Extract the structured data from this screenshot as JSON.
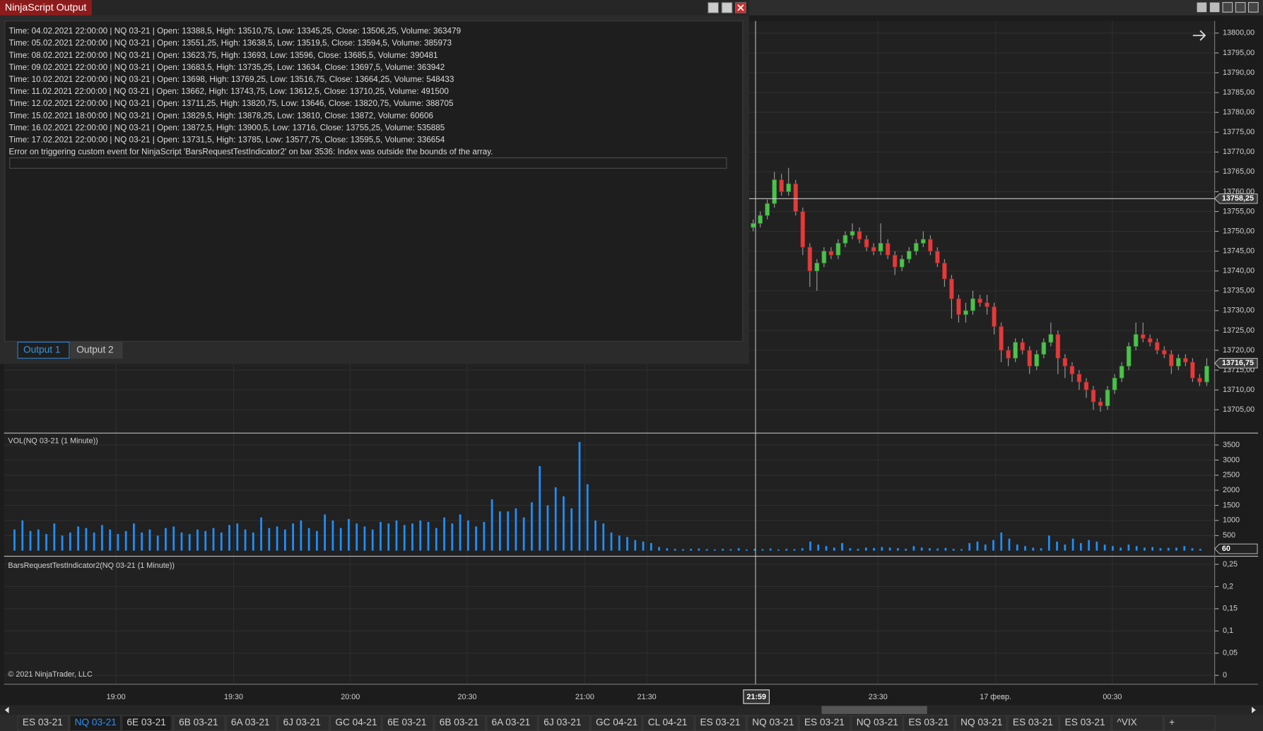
{
  "output_window": {
    "title": "NinjaScript Output",
    "lines": [
      "Time: 04.02.2021 22:00:00 | NQ 03-21 | Open: 13388,5, High: 13510,75, Low: 13345,25, Close: 13506,25, Volume: 363479",
      "Time: 05.02.2021 22:00:00 | NQ 03-21 | Open: 13551,25, High: 13638,5, Low: 13519,5, Close: 13594,5, Volume: 385973",
      "Time: 08.02.2021 22:00:00 | NQ 03-21 | Open: 13623,75, High: 13693, Low: 13596, Close: 13685,5, Volume: 390481",
      "Time: 09.02.2021 22:00:00 | NQ 03-21 | Open: 13683,5, High: 13735,25, Low: 13634, Close: 13697,5, Volume: 363942",
      "Time: 10.02.2021 22:00:00 | NQ 03-21 | Open: 13698, High: 13769,25, Low: 13516,75, Close: 13664,25, Volume: 548433",
      "Time: 11.02.2021 22:00:00 | NQ 03-21 | Open: 13662, High: 13743,75, Low: 13612,5, Close: 13710,25, Volume: 491500",
      "Time: 12.02.2021 22:00:00 | NQ 03-21 | Open: 13711,25, High: 13820,75, Low: 13646, Close: 13820,75, Volume: 388705",
      "Time: 15.02.2021 18:00:00 | NQ 03-21 | Open: 13829,5, High: 13878,25, Low: 13810, Close: 13872, Volume: 60606",
      "Time: 16.02.2021 22:00:00 | NQ 03-21 | Open: 13872,5, High: 13900,5, Low: 13716, Close: 13755,25, Volume: 535885",
      "Time: 17.02.2021 22:00:00 | NQ 03-21 | Open: 13731,5, High: 13785, Low: 13577,75, Close: 13595,5, Volume: 336654",
      "Error on triggering custom event for NinjaScript 'BarsRequestTestIndicator2' on bar 3536: Index was outside the bounds of the array."
    ],
    "tabs": [
      "Output 1",
      "Output 2"
    ],
    "active_tab": 0
  },
  "price_chart": {
    "ylim": [
      13699.52,
      13803.05
    ],
    "yticks": [
      {
        "value": 13800,
        "label": "13800,00"
      },
      {
        "value": 13795,
        "label": "13795,00"
      },
      {
        "value": 13790,
        "label": "13790,00"
      },
      {
        "value": 13785,
        "label": "13785,00"
      },
      {
        "value": 13780,
        "label": "13780,00"
      },
      {
        "value": 13775,
        "label": "13775,00"
      },
      {
        "value": 13770,
        "label": "13770,00"
      },
      {
        "value": 13765,
        "label": "13765,00"
      },
      {
        "value": 13760,
        "label": "13760,00"
      },
      {
        "value": 13755,
        "label": "13755,00"
      },
      {
        "value": 13750,
        "label": "13750,00"
      },
      {
        "value": 13745,
        "label": "13745,00"
      },
      {
        "value": 13740,
        "label": "13740,00"
      },
      {
        "value": 13735,
        "label": "13735,00"
      },
      {
        "value": 13730,
        "label": "13730,00"
      },
      {
        "value": 13725,
        "label": "13725,00"
      },
      {
        "value": 13720,
        "label": "13720,00"
      },
      {
        "value": 13715,
        "label": "13715,00"
      },
      {
        "value": 13710,
        "label": "13710,00"
      },
      {
        "value": 13705,
        "label": "13705,00"
      }
    ],
    "crosshair_price": {
      "value": 13758.25,
      "label": "13758,25"
    },
    "last_price": {
      "value": 13716.75,
      "label": "13716,75"
    },
    "candles": [
      [
        13751,
        13753,
        13750,
        13752
      ],
      [
        13752,
        13755,
        13751,
        13754
      ],
      [
        13754,
        13758,
        13753,
        13757
      ],
      [
        13757,
        13765,
        13756,
        13763
      ],
      [
        13763,
        13764.5,
        13759,
        13760
      ],
      [
        13760,
        13766,
        13759,
        13762
      ],
      [
        13762,
        13763,
        13754,
        13755
      ],
      [
        13755,
        13756,
        13744,
        13746
      ],
      [
        13746,
        13747,
        13736,
        13740
      ],
      [
        13740,
        13743,
        13735,
        13742
      ],
      [
        13742,
        13746,
        13741,
        13745
      ],
      [
        13745,
        13746,
        13743,
        13744
      ],
      [
        13744,
        13748,
        13743,
        13747
      ],
      [
        13747,
        13750,
        13746,
        13749
      ],
      [
        13749,
        13752,
        13748,
        13750
      ],
      [
        13750,
        13751,
        13747,
        13748
      ],
      [
        13748,
        13749,
        13745,
        13746
      ],
      [
        13746,
        13747,
        13744,
        13745
      ],
      [
        13745,
        13752,
        13744,
        13747
      ],
      [
        13747,
        13748,
        13743,
        13744
      ],
      [
        13744,
        13745,
        13739,
        13741
      ],
      [
        13741,
        13744,
        13740,
        13743
      ],
      [
        13743,
        13746,
        13742,
        13745
      ],
      [
        13745,
        13748,
        13744,
        13747
      ],
      [
        13747,
        13750,
        13746,
        13748
      ],
      [
        13748,
        13749,
        13744,
        13745
      ],
      [
        13745,
        13746,
        13741,
        13742
      ],
      [
        13742,
        13743,
        13736,
        13738
      ],
      [
        13738,
        13739,
        13728,
        13733
      ],
      [
        13733,
        13734,
        13727,
        13729
      ],
      [
        13729,
        13732,
        13727,
        13730
      ],
      [
        13730,
        13735,
        13729,
        13733
      ],
      [
        13733,
        13734,
        13731,
        13732
      ],
      [
        13732,
        13734,
        13729,
        13731
      ],
      [
        13731,
        13732,
        13724,
        13726
      ],
      [
        13726,
        13727,
        13717,
        13720
      ],
      [
        13720,
        13721,
        13716,
        13718
      ],
      [
        13718,
        13723,
        13717,
        13722
      ],
      [
        13722,
        13723,
        13719,
        13720
      ],
      [
        13720,
        13721,
        13714,
        13716
      ],
      [
        13716,
        13720,
        13715,
        13719
      ],
      [
        13719,
        13723,
        13718,
        13722
      ],
      [
        13722,
        13727,
        13721,
        13724
      ],
      [
        13724,
        13725,
        13714,
        13718
      ],
      [
        13718,
        13719,
        13713,
        13716
      ],
      [
        13716,
        13717,
        13712,
        13714
      ],
      [
        13714,
        13715,
        13710,
        13712
      ],
      [
        13712,
        13713,
        13708,
        13710
      ],
      [
        13710,
        13711,
        13705,
        13707
      ],
      [
        13707,
        13708,
        13704.5,
        13706
      ],
      [
        13706,
        13711,
        13705,
        13710
      ],
      [
        13710,
        13714,
        13709,
        13713
      ],
      [
        13713,
        13717,
        13712,
        13716
      ],
      [
        13716,
        13722,
        13715,
        13721
      ],
      [
        13721,
        13727,
        13720,
        13724
      ],
      [
        13724,
        13727,
        13722,
        13723
      ],
      [
        13723,
        13724,
        13721,
        13722
      ],
      [
        13722,
        13723,
        13719,
        13720
      ],
      [
        13720,
        13721,
        13718,
        13719
      ],
      [
        13719,
        13720,
        13714,
        13716
      ],
      [
        13716,
        13719,
        13715,
        13718
      ],
      [
        13718,
        13719,
        13716,
        13717
      ],
      [
        13717,
        13718,
        13712,
        13713
      ],
      [
        13713,
        13714,
        13711,
        13712
      ],
      [
        13712,
        13718,
        13711,
        13716
      ]
    ]
  },
  "volume_chart": {
    "title": "VOL(NQ 03-21 (1 Minute))",
    "ylim": [
      0,
      3840
    ],
    "yticks": [
      500,
      1000,
      1500,
      2000,
      2500,
      3000,
      3500
    ],
    "current": 60,
    "values": [
      700,
      1000,
      650,
      700,
      550,
      900,
      500,
      600,
      800,
      750,
      600,
      850,
      700,
      550,
      650,
      900,
      600,
      700,
      500,
      750,
      800,
      600,
      550,
      700,
      650,
      750,
      600,
      850,
      900,
      700,
      600,
      1100,
      750,
      800,
      700,
      900,
      1000,
      750,
      650,
      1200,
      1000,
      750,
      1050,
      900,
      800,
      700,
      950,
      900,
      1000,
      850,
      900,
      1000,
      950,
      750,
      1100,
      900,
      1200,
      1000,
      800,
      950,
      1700,
      1300,
      1300,
      1400,
      1100,
      1600,
      2800,
      1500,
      2100,
      1800,
      1400,
      3600,
      2200,
      1000,
      900,
      600,
      500,
      450,
      350,
      300,
      250,
      120,
      80,
      60,
      50,
      60,
      70,
      50,
      40,
      60,
      50,
      80,
      40,
      60,
      50,
      70,
      40,
      60,
      50,
      80,
      300,
      200,
      150,
      100,
      250,
      80,
      60,
      100,
      90,
      120,
      100,
      80,
      60,
      150,
      100,
      80,
      70,
      90,
      60,
      50,
      250,
      300,
      200,
      350,
      600,
      400,
      200,
      150,
      100,
      80,
      500,
      300,
      200,
      400,
      250,
      350,
      300,
      200,
      150,
      100,
      200,
      150,
      100,
      120,
      80,
      90,
      100,
      150,
      80,
      60
    ]
  },
  "indicator_chart": {
    "title": "BarsRequestTestIndicator2(NQ 03-21 (1 Minute))",
    "ylim": [
      -0.02,
      0.2645
    ],
    "yticks": [
      {
        "value": 0.25,
        "label": "0,25"
      },
      {
        "value": 0.2,
        "label": "0,2"
      },
      {
        "value": 0.15,
        "label": "0,15"
      },
      {
        "value": 0.1,
        "label": "0,1"
      },
      {
        "value": 0.05,
        "label": "0,05"
      },
      0
    ]
  },
  "copyright": "© 2021 NinjaTrader, LLC",
  "time_axis": {
    "labels": [
      "19:00",
      "19:30",
      "20:00",
      "20:30",
      "21:00",
      "21:30",
      "23:30",
      "17 февр.",
      "00:30"
    ],
    "crosshair_time": "21:59"
  },
  "instrument_tabs": {
    "names": [
      "ES 03-21",
      "NQ 03-21",
      "6E 03-21",
      "6B 03-21",
      "6A 03-21",
      "6J 03-21",
      "GC 04-21",
      "6E 03-21",
      "6B 03-21",
      "6A 03-21",
      "6J 03-21",
      "GC 04-21",
      "CL 04-21",
      "ES 03-21",
      "NQ 03-21",
      "ES 03-21",
      "NQ 03-21",
      "ES 03-21",
      "NQ 03-21",
      "ES 03-21",
      "ES 03-21",
      "^VIX",
      "+"
    ],
    "active": 1
  }
}
